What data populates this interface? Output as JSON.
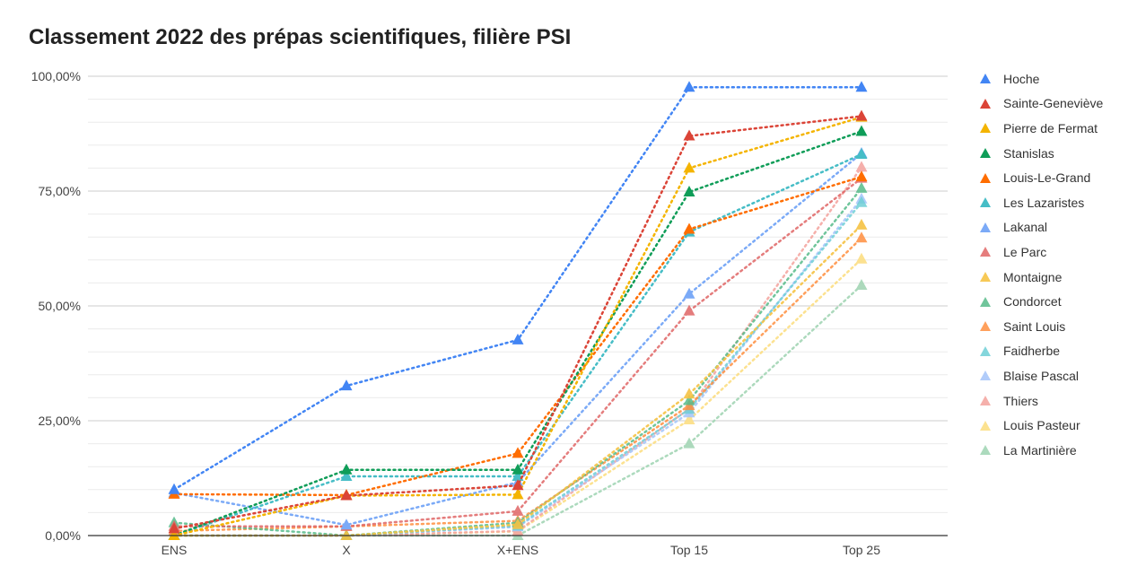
{
  "chart_data": {
    "type": "line",
    "title": "Classement 2022 des prépas scientifiques, filière PSI",
    "xlabel": "",
    "ylabel": "",
    "categories": [
      "ENS",
      "X",
      "X+ENS",
      "Top 15",
      "Top 25"
    ],
    "ylim": [
      0,
      100
    ],
    "yticks": [
      {
        "value": 0,
        "label": "0,00%"
      },
      {
        "value": 25,
        "label": "25,00%"
      },
      {
        "value": 50,
        "label": "50,00%"
      },
      {
        "value": 75,
        "label": "75,00%"
      },
      {
        "value": 100,
        "label": "100,00%"
      }
    ],
    "grid": true,
    "line_style": "dotted",
    "marker": "triangle",
    "legend_position": "right",
    "series": [
      {
        "name": "Hoche",
        "color": "#4285f4",
        "opacity": 1.0,
        "values": [
          10.0,
          32.6,
          42.6,
          97.6,
          97.6
        ]
      },
      {
        "name": "Sainte-Geneviève",
        "color": "#db4437",
        "opacity": 1.0,
        "values": [
          1.5,
          8.7,
          10.9,
          87.0,
          91.3
        ]
      },
      {
        "name": "Pierre de Fermat",
        "color": "#f4b400",
        "opacity": 1.0,
        "values": [
          0.0,
          8.7,
          8.9,
          80.0,
          91.1
        ]
      },
      {
        "name": "Stanislas",
        "color": "#0f9d58",
        "opacity": 1.0,
        "values": [
          0.0,
          14.3,
          14.3,
          74.8,
          88.0
        ]
      },
      {
        "name": "Louis-Le-Grand",
        "color": "#ff6d00",
        "opacity": 1.0,
        "values": [
          9.0,
          8.8,
          17.9,
          66.7,
          78.1
        ]
      },
      {
        "name": "Les Lazaristes",
        "color": "#46bdc6",
        "opacity": 1.0,
        "values": [
          0.0,
          12.9,
          12.9,
          66.1,
          83.0
        ]
      },
      {
        "name": "Lakanal",
        "color": "#7baaf7",
        "opacity": 1.0,
        "values": [
          9.3,
          2.3,
          11.6,
          52.6,
          83.2
        ]
      },
      {
        "name": "Le Parc",
        "color": "#e06666",
        "opacity": 0.85,
        "values": [
          2.0,
          2.0,
          5.3,
          48.9,
          77.8
        ]
      },
      {
        "name": "Montaigne",
        "color": "#f6c344",
        "opacity": 0.9,
        "values": [
          0.0,
          0.0,
          2.4,
          30.8,
          67.6
        ]
      },
      {
        "name": "Condorcet",
        "color": "#57bb8a",
        "opacity": 0.85,
        "values": [
          2.8,
          0.0,
          2.8,
          29.4,
          75.6
        ]
      },
      {
        "name": "Saint Louis",
        "color": "#ff8f3f",
        "opacity": 0.85,
        "values": [
          1.0,
          2.0,
          3.2,
          28.3,
          64.8
        ]
      },
      {
        "name": "Faidherbe",
        "color": "#6fcfd6",
        "opacity": 0.85,
        "values": [
          0.0,
          0.0,
          2.1,
          27.5,
          72.5
        ]
      },
      {
        "name": "Blaise Pascal",
        "color": "#a8c7fa",
        "opacity": 0.9,
        "values": [
          0.0,
          0.0,
          1.9,
          26.7,
          73.3
        ]
      },
      {
        "name": "Thiers",
        "color": "#f4a7a2",
        "opacity": 0.9,
        "values": [
          0.0,
          0.0,
          1.0,
          27.6,
          80.2
        ]
      },
      {
        "name": "Louis Pasteur",
        "color": "#fce08a",
        "opacity": 0.95,
        "values": [
          0.0,
          0.0,
          0.9,
          25.2,
          60.2
        ]
      },
      {
        "name": "La Martinière",
        "color": "#a8d8b9",
        "opacity": 0.95,
        "values": [
          0.0,
          0.0,
          0.0,
          20.0,
          54.5
        ]
      }
    ]
  }
}
